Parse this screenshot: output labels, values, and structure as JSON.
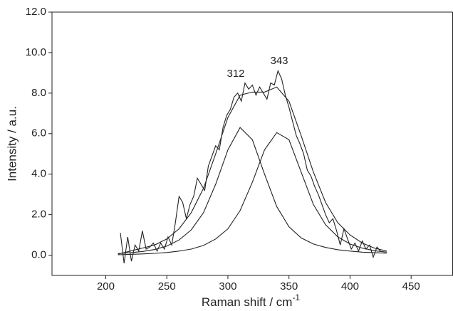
{
  "chart_data": {
    "type": "line",
    "xlabel": "Raman shift / cm",
    "xlabel_superscript": "-1",
    "ylabel": "Intensity / a.u.",
    "annotations": [
      "312",
      "343"
    ],
    "xlim": [
      156,
      484
    ],
    "ylim": [
      -1,
      12
    ],
    "xticks": [
      200,
      250,
      300,
      350,
      400,
      450
    ],
    "yticks": [
      {
        "value": 0,
        "label": "0.0"
      },
      {
        "value": 2,
        "label": "2.0"
      },
      {
        "value": 4,
        "label": "4.0"
      },
      {
        "value": 6,
        "label": "6.0"
      },
      {
        "value": 8,
        "label": "8.0"
      },
      {
        "value": 10,
        "label": "10.0"
      },
      {
        "value": 12,
        "label": "12.0"
      }
    ],
    "series": [
      {
        "color": "#222222",
        "x": [
          212,
          215,
          218,
          221,
          224,
          227,
          230,
          233,
          236,
          239,
          242,
          245,
          248,
          251,
          254,
          257,
          260,
          263,
          266,
          269,
          272,
          275,
          278,
          281,
          284,
          287,
          290,
          293,
          296,
          299,
          302,
          305,
          308,
          311,
          314,
          317,
          320,
          323,
          326,
          329,
          332,
          335,
          338,
          341,
          344,
          347,
          350,
          353,
          356,
          359,
          362,
          365,
          368,
          371,
          374,
          377,
          380,
          383,
          386,
          389,
          392,
          395,
          398,
          401,
          404,
          407,
          410,
          413,
          416,
          419,
          422,
          425
        ],
        "values": [
          1.1,
          -0.4,
          0.9,
          -0.3,
          0.5,
          0.2,
          1.2,
          0.3,
          0.4,
          0.6,
          0.2,
          0.6,
          0.3,
          0.9,
          0.5,
          1.6,
          2.9,
          2.6,
          1.8,
          2.5,
          2.9,
          3.8,
          3.5,
          3.2,
          4.4,
          4.9,
          5.4,
          5.2,
          6.3,
          6.9,
          7.2,
          7.8,
          8.0,
          7.6,
          8.5,
          8.2,
          8.4,
          7.9,
          8.3,
          8.0,
          7.7,
          8.5,
          8.4,
          9.1,
          8.7,
          7.9,
          7.3,
          6.6,
          5.9,
          5.5,
          5.0,
          4.2,
          3.9,
          3.4,
          3.0,
          2.5,
          2.0,
          1.6,
          1.8,
          1.2,
          0.5,
          1.3,
          0.8,
          0.3,
          0.6,
          0.2,
          0.7,
          0.3,
          0.5,
          -0.1,
          0.4,
          0.2
        ]
      },
      {
        "color": "#222222",
        "x": [
          210,
          220,
          230,
          240,
          250,
          260,
          270,
          280,
          290,
          300,
          310,
          320,
          330,
          340,
          350,
          360,
          370,
          380,
          390,
          400,
          410,
          420,
          430
        ],
        "values": [
          0.05,
          0.2,
          0.35,
          0.5,
          0.8,
          1.3,
          2.1,
          3.3,
          5.0,
          6.8,
          7.9,
          8.05,
          8.05,
          8.3,
          7.6,
          5.9,
          4.1,
          2.6,
          1.6,
          1.0,
          0.6,
          0.35,
          0.2
        ]
      },
      {
        "color": "#222222",
        "x": [
          210,
          220,
          230,
          240,
          250,
          260,
          270,
          280,
          290,
          300,
          310,
          320,
          330,
          340,
          350,
          360,
          370,
          380,
          390,
          400,
          410,
          420,
          430
        ],
        "values": [
          0.08,
          0.12,
          0.18,
          0.28,
          0.45,
          0.75,
          1.25,
          2.1,
          3.5,
          5.2,
          6.3,
          5.7,
          4.0,
          2.4,
          1.4,
          0.85,
          0.55,
          0.38,
          0.27,
          0.2,
          0.15,
          0.12,
          0.1
        ]
      },
      {
        "color": "#222222",
        "x": [
          210,
          220,
          230,
          240,
          250,
          260,
          270,
          280,
          290,
          300,
          310,
          320,
          330,
          340,
          350,
          360,
          370,
          380,
          390,
          400,
          410,
          420,
          430
        ],
        "values": [
          0.02,
          0.04,
          0.06,
          0.09,
          0.13,
          0.2,
          0.3,
          0.48,
          0.8,
          1.3,
          2.2,
          3.6,
          5.2,
          6.05,
          5.7,
          4.1,
          2.5,
          1.5,
          0.9,
          0.55,
          0.35,
          0.22,
          0.15
        ]
      }
    ]
  }
}
